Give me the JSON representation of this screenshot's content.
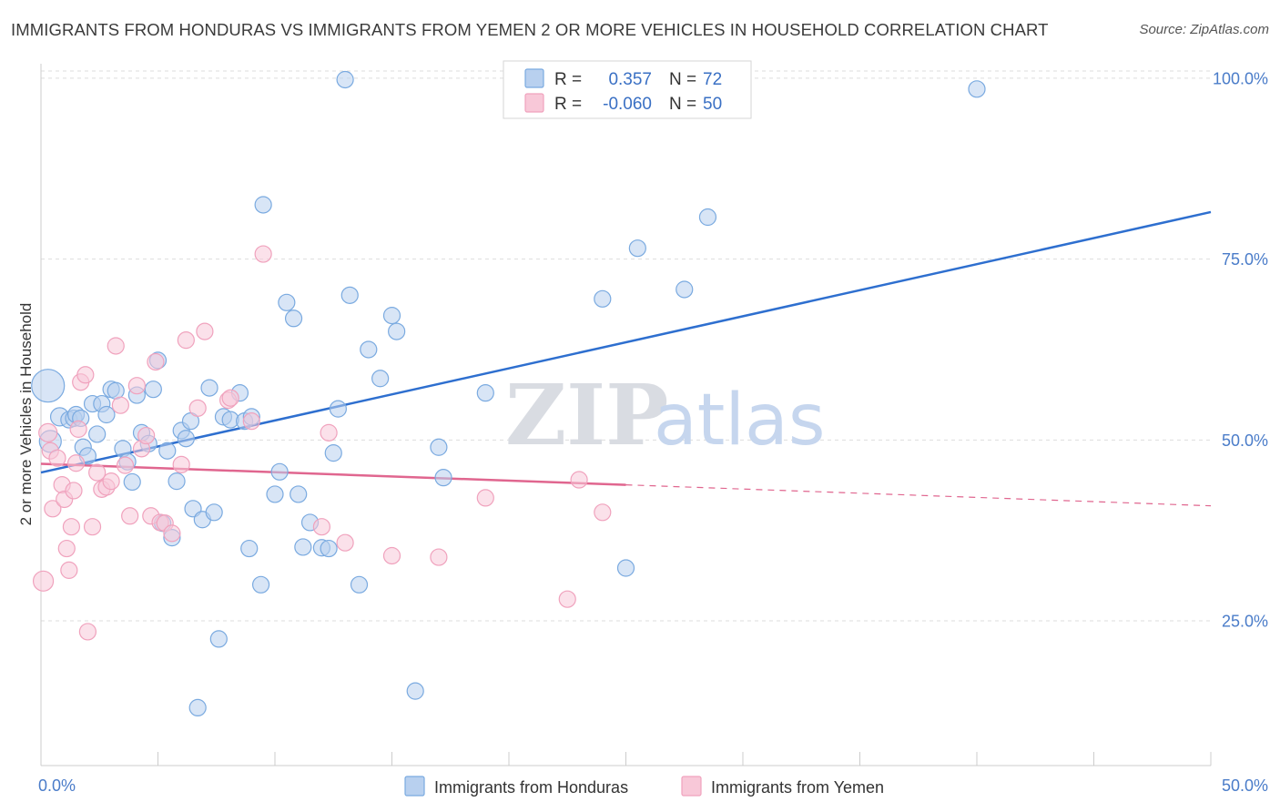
{
  "title": "IMMIGRANTS FROM HONDURAS VS IMMIGRANTS FROM YEMEN 2 OR MORE VEHICLES IN HOUSEHOLD CORRELATION CHART",
  "source": "Source: ZipAtlas.com",
  "watermark": {
    "zip": "ZIP",
    "atlas": "atlas"
  },
  "chart_data": {
    "type": "scatter",
    "title": "IMMIGRANTS FROM HONDURAS VS IMMIGRANTS FROM YEMEN 2 OR MORE VEHICLES IN HOUSEHOLD CORRELATION CHART",
    "xlabel": "",
    "ylabel": "2 or more Vehicles in Household",
    "xlim": [
      0,
      50
    ],
    "ylim": [
      5,
      102
    ],
    "x_tick_labels": {
      "min": "0.0%",
      "max": "50.0%"
    },
    "y_ticks": [
      {
        "value": 100,
        "label": "100.0%"
      },
      {
        "value": 75,
        "label": "75.0%"
      },
      {
        "value": 50,
        "label": "50.0%"
      },
      {
        "value": 25,
        "label": "25.0%"
      }
    ],
    "grid": true,
    "legend_position": "bottom-center",
    "stats_box": [
      {
        "r_label": "R =",
        "r_value": "0.357",
        "n_label": "N =",
        "n_value": "72"
      },
      {
        "r_label": "R =",
        "r_value": "-0.060",
        "n_label": "N =",
        "n_value": "50"
      }
    ],
    "series": [
      {
        "name": "Immigrants from Honduras",
        "color": "#7aaae0",
        "fill": "#b8d0ef",
        "line_color": "#2e6fcf",
        "trend": {
          "x0": 0,
          "y0": 45.5,
          "x1": 50,
          "y1": 81.5,
          "dashed_from": null
        },
        "points": [
          [
            0.3,
            57.5,
            18
          ],
          [
            0.4,
            49.8,
            12
          ],
          [
            0.8,
            53.2,
            10
          ],
          [
            1.2,
            52.8,
            9
          ],
          [
            1.4,
            53.0,
            9
          ],
          [
            1.5,
            53.5,
            9
          ],
          [
            1.7,
            53.0,
            9
          ],
          [
            1.8,
            49.0,
            9
          ],
          [
            2.0,
            47.8,
            9
          ],
          [
            2.2,
            55.0,
            9
          ],
          [
            2.4,
            50.8,
            9
          ],
          [
            2.6,
            55.0,
            9
          ],
          [
            2.8,
            53.5,
            9
          ],
          [
            3.0,
            57.0,
            9
          ],
          [
            3.2,
            56.8,
            9
          ],
          [
            3.5,
            48.8,
            9
          ],
          [
            3.7,
            47.0,
            9
          ],
          [
            3.9,
            44.2,
            9
          ],
          [
            4.1,
            56.2,
            9
          ],
          [
            4.3,
            51.0,
            9
          ],
          [
            4.6,
            49.5,
            9
          ],
          [
            4.8,
            57.0,
            9
          ],
          [
            5.0,
            61.0,
            9
          ],
          [
            5.2,
            38.5,
            9
          ],
          [
            5.4,
            48.5,
            9
          ],
          [
            5.6,
            36.5,
            9
          ],
          [
            5.8,
            44.3,
            9
          ],
          [
            6.0,
            51.3,
            9
          ],
          [
            6.2,
            50.2,
            9
          ],
          [
            6.4,
            52.6,
            9
          ],
          [
            6.5,
            40.5,
            9
          ],
          [
            6.7,
            13.0,
            9
          ],
          [
            6.9,
            39.0,
            9
          ],
          [
            7.2,
            57.2,
            9
          ],
          [
            7.4,
            40.0,
            9
          ],
          [
            7.6,
            22.5,
            9
          ],
          [
            7.8,
            53.2,
            9
          ],
          [
            8.1,
            52.8,
            9
          ],
          [
            8.5,
            56.5,
            9
          ],
          [
            8.7,
            52.6,
            9
          ],
          [
            8.9,
            35.0,
            9
          ],
          [
            9.0,
            53.2,
            9
          ],
          [
            9.4,
            30.0,
            9
          ],
          [
            9.5,
            82.5,
            9
          ],
          [
            10.0,
            42.5,
            9
          ],
          [
            10.2,
            45.6,
            9
          ],
          [
            10.5,
            69.0,
            9
          ],
          [
            10.8,
            66.8,
            9
          ],
          [
            11.0,
            42.5,
            9
          ],
          [
            11.2,
            35.2,
            9
          ],
          [
            11.5,
            38.6,
            9
          ],
          [
            12.0,
            35.1,
            9
          ],
          [
            12.3,
            35.0,
            9
          ],
          [
            12.5,
            48.2,
            9
          ],
          [
            12.7,
            54.3,
            9
          ],
          [
            13.0,
            99.8,
            9
          ],
          [
            13.2,
            70.0,
            9
          ],
          [
            13.6,
            30.0,
            9
          ],
          [
            14.0,
            62.5,
            9
          ],
          [
            14.5,
            58.5,
            9
          ],
          [
            15.0,
            67.2,
            9
          ],
          [
            15.2,
            65.0,
            9
          ],
          [
            16.0,
            15.3,
            9
          ],
          [
            17.0,
            49.0,
            9
          ],
          [
            17.2,
            44.8,
            9
          ],
          [
            19.0,
            56.5,
            9
          ],
          [
            24.0,
            69.5,
            9
          ],
          [
            25.0,
            32.3,
            9
          ],
          [
            25.5,
            76.5,
            9
          ],
          [
            27.5,
            70.8,
            9
          ],
          [
            28.5,
            80.8,
            9
          ],
          [
            40.0,
            98.5,
            9
          ]
        ]
      },
      {
        "name": "Immigrants from Yemen",
        "color": "#f0a2bd",
        "fill": "#f8c8d8",
        "line_color": "#e0668f",
        "trend": {
          "x0": 0,
          "y0": 46.7,
          "x1": 50,
          "y1": 40.9,
          "dashed_from": 25
        },
        "points": [
          [
            0.1,
            30.5,
            11
          ],
          [
            0.3,
            51.0,
            10
          ],
          [
            0.4,
            48.5,
            9
          ],
          [
            0.5,
            40.5,
            9
          ],
          [
            0.7,
            47.5,
            9
          ],
          [
            0.9,
            43.8,
            9
          ],
          [
            1.0,
            41.8,
            9
          ],
          [
            1.1,
            35.0,
            9
          ],
          [
            1.2,
            32.0,
            9
          ],
          [
            1.3,
            38.0,
            9
          ],
          [
            1.4,
            43.0,
            9
          ],
          [
            1.5,
            46.8,
            9
          ],
          [
            1.6,
            51.5,
            9
          ],
          [
            1.7,
            58.0,
            9
          ],
          [
            1.9,
            59.0,
            9
          ],
          [
            2.0,
            23.5,
            9
          ],
          [
            2.2,
            38.0,
            9
          ],
          [
            2.4,
            45.5,
            9
          ],
          [
            2.6,
            43.2,
            9
          ],
          [
            2.8,
            43.5,
            9
          ],
          [
            3.0,
            44.3,
            9
          ],
          [
            3.2,
            63.0,
            9
          ],
          [
            3.4,
            54.8,
            9
          ],
          [
            3.6,
            46.5,
            9
          ],
          [
            3.8,
            39.5,
            9
          ],
          [
            4.1,
            57.5,
            9
          ],
          [
            4.3,
            48.8,
            9
          ],
          [
            4.5,
            50.6,
            9
          ],
          [
            4.7,
            39.5,
            9
          ],
          [
            4.9,
            60.8,
            9
          ],
          [
            5.1,
            38.6,
            9
          ],
          [
            5.3,
            38.5,
            9
          ],
          [
            5.6,
            37.1,
            9
          ],
          [
            6.0,
            46.6,
            9
          ],
          [
            6.2,
            63.8,
            9
          ],
          [
            6.7,
            54.4,
            9
          ],
          [
            7.0,
            65.0,
            9
          ],
          [
            8.0,
            55.5,
            9
          ],
          [
            8.1,
            55.8,
            9
          ],
          [
            9.0,
            52.6,
            9
          ],
          [
            9.5,
            75.7,
            9
          ],
          [
            12.0,
            38.0,
            9
          ],
          [
            12.3,
            51.0,
            9
          ],
          [
            13.0,
            35.8,
            9
          ],
          [
            15.0,
            34.0,
            9
          ],
          [
            17.0,
            33.8,
            9
          ],
          [
            19.0,
            42.0,
            9
          ],
          [
            22.5,
            28.0,
            9
          ],
          [
            23.0,
            44.5,
            9
          ],
          [
            24.0,
            40.0,
            9
          ]
        ]
      }
    ]
  }
}
